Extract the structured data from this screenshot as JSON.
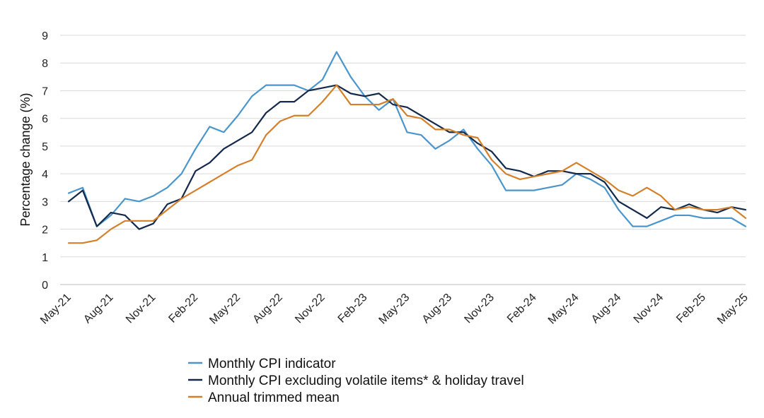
{
  "chart_data": {
    "type": "line",
    "title": "",
    "xlabel": "",
    "ylabel": "Percentage change (%)",
    "ylim": [
      0,
      9
    ],
    "yticks": [
      0,
      1,
      2,
      3,
      4,
      5,
      6,
      7,
      8,
      9
    ],
    "grid": "horizontal",
    "legend_position": "bottom",
    "x_tick_labels": [
      "May-21",
      "Aug-21",
      "Nov-21",
      "Feb-22",
      "May-22",
      "Aug-22",
      "Nov-22",
      "Feb-23",
      "May-23",
      "Aug-23",
      "Nov-23",
      "Feb-24",
      "May-24",
      "Aug-24",
      "Nov-24",
      "Feb-25",
      "May-25"
    ],
    "x": [
      "May-21",
      "Jun-21",
      "Jul-21",
      "Aug-21",
      "Sep-21",
      "Oct-21",
      "Nov-21",
      "Dec-21",
      "Jan-22",
      "Feb-22",
      "Mar-22",
      "Apr-22",
      "May-22",
      "Jun-22",
      "Jul-22",
      "Aug-22",
      "Sep-22",
      "Oct-22",
      "Nov-22",
      "Dec-22",
      "Jan-23",
      "Feb-23",
      "Mar-23",
      "Apr-23",
      "May-23",
      "Jun-23",
      "Jul-23",
      "Aug-23",
      "Sep-23",
      "Oct-23",
      "Nov-23",
      "Dec-23",
      "Jan-24",
      "Feb-24",
      "Mar-24",
      "Apr-24",
      "May-24",
      "Jun-24",
      "Jul-24",
      "Aug-24",
      "Sep-24",
      "Oct-24",
      "Nov-24",
      "Dec-24",
      "Jan-25",
      "Feb-25",
      "Mar-25",
      "Apr-25",
      "May-25"
    ],
    "series": [
      {
        "name": "Monthly CPI indicator",
        "color": "#4a96cc",
        "values": [
          3.3,
          3.5,
          2.1,
          2.5,
          3.1,
          3.0,
          3.2,
          3.5,
          4.0,
          4.9,
          5.7,
          5.5,
          6.1,
          6.8,
          7.2,
          7.2,
          7.2,
          7.0,
          7.4,
          8.4,
          7.5,
          6.8,
          6.3,
          6.7,
          5.5,
          5.4,
          4.9,
          5.2,
          5.6,
          4.9,
          4.3,
          3.4,
          3.4,
          3.4,
          3.5,
          3.6,
          4.0,
          3.8,
          3.5,
          2.7,
          2.1,
          2.1,
          2.3,
          2.5,
          2.5,
          2.4,
          2.4,
          2.4,
          2.1
        ]
      },
      {
        "name": "Monthly CPI excluding volatile items* & holiday travel",
        "color": "#13294b",
        "values": [
          3.0,
          3.4,
          2.1,
          2.6,
          2.5,
          2.0,
          2.2,
          2.9,
          3.1,
          4.1,
          4.4,
          4.9,
          5.2,
          5.5,
          6.2,
          6.6,
          6.6,
          7.0,
          7.1,
          7.2,
          6.9,
          6.8,
          6.9,
          6.5,
          6.4,
          6.1,
          5.8,
          5.5,
          5.5,
          5.1,
          4.8,
          4.2,
          4.1,
          3.9,
          4.1,
          4.1,
          4.0,
          4.0,
          3.7,
          3.0,
          2.7,
          2.4,
          2.8,
          2.7,
          2.9,
          2.7,
          2.6,
          2.8,
          2.7
        ]
      },
      {
        "name": "Annual trimmed mean",
        "color": "#d4802a",
        "values": [
          1.5,
          1.5,
          1.6,
          2.0,
          2.3,
          2.3,
          2.3,
          2.7,
          3.1,
          3.4,
          3.7,
          4.0,
          4.3,
          4.5,
          5.4,
          5.9,
          6.1,
          6.1,
          6.6,
          7.2,
          6.5,
          6.5,
          6.5,
          6.7,
          6.1,
          6.0,
          5.6,
          5.6,
          5.4,
          5.3,
          4.5,
          4.0,
          3.8,
          3.9,
          4.0,
          4.1,
          4.4,
          4.1,
          3.8,
          3.4,
          3.2,
          3.5,
          3.2,
          2.7,
          2.8,
          2.7,
          2.7,
          2.8,
          2.4
        ]
      }
    ]
  },
  "colors": {
    "gridline": "#d9d9d9",
    "baseline": "#bfbfbf",
    "text": "#222222"
  }
}
